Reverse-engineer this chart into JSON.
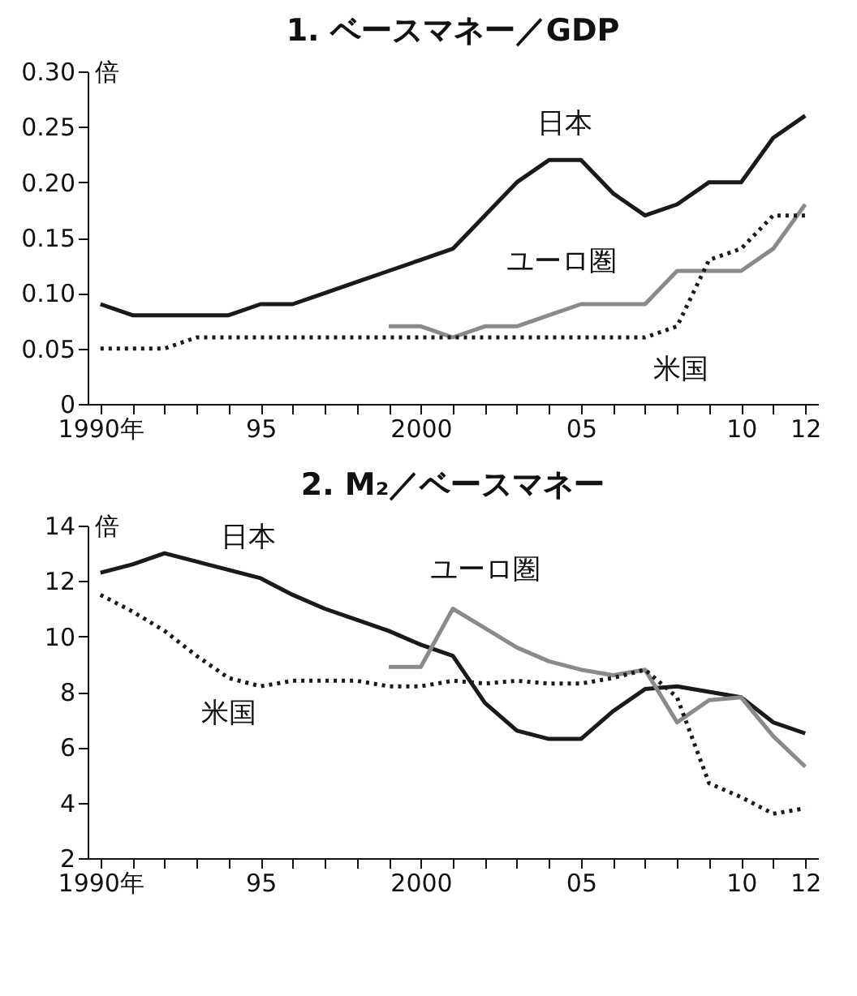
{
  "chart_data": [
    {
      "type": "line",
      "title": "1. ベースマネー／GDP",
      "ylabel": "倍",
      "x": [
        1990,
        1991,
        1992,
        1993,
        1994,
        1995,
        1996,
        1997,
        1998,
        1999,
        2000,
        2001,
        2002,
        2003,
        2004,
        2005,
        2006,
        2007,
        2008,
        2009,
        2010,
        2011,
        2012
      ],
      "series": [
        {
          "name": "日本",
          "color": "#1a1a1a",
          "line_style": "solid",
          "values": [
            0.09,
            0.08,
            0.08,
            0.08,
            0.08,
            0.09,
            0.09,
            0.1,
            0.11,
            0.12,
            0.13,
            0.14,
            0.17,
            0.2,
            0.22,
            0.22,
            0.19,
            0.17,
            0.18,
            0.2,
            0.2,
            0.24,
            0.26
          ]
        },
        {
          "name": "ユーロ圏",
          "color": "#8a8a8a",
          "line_style": "solid",
          "x": [
            1999,
            2000,
            2001,
            2002,
            2003,
            2004,
            2005,
            2006,
            2007,
            2008,
            2009,
            2010,
            2011,
            2012
          ],
          "values": [
            0.07,
            0.07,
            0.06,
            0.07,
            0.07,
            0.08,
            0.09,
            0.09,
            0.09,
            0.12,
            0.12,
            0.12,
            0.14,
            0.18
          ]
        },
        {
          "name": "米国",
          "color": "#1a1a1a",
          "line_style": "dotted",
          "values": [
            0.05,
            0.05,
            0.05,
            0.06,
            0.06,
            0.06,
            0.06,
            0.06,
            0.06,
            0.06,
            0.06,
            0.06,
            0.06,
            0.06,
            0.06,
            0.06,
            0.06,
            0.06,
            0.07,
            0.13,
            0.14,
            0.17,
            0.17
          ]
        }
      ],
      "xlim": [
        1989.6,
        2012.4
      ],
      "xticks": [
        {
          "value": 1990,
          "label": "1990年"
        },
        {
          "value": 1991,
          "label": null
        },
        {
          "value": 1992,
          "label": null
        },
        {
          "value": 1993,
          "label": null
        },
        {
          "value": 1994,
          "label": null
        },
        {
          "value": 1995,
          "label": "95"
        },
        {
          "value": 1996,
          "label": null
        },
        {
          "value": 1997,
          "label": null
        },
        {
          "value": 1998,
          "label": null
        },
        {
          "value": 1999,
          "label": null
        },
        {
          "value": 2000,
          "label": "2000"
        },
        {
          "value": 2001,
          "label": null
        },
        {
          "value": 2002,
          "label": null
        },
        {
          "value": 2003,
          "label": null
        },
        {
          "value": 2004,
          "label": null
        },
        {
          "value": 2005,
          "label": "05"
        },
        {
          "value": 2006,
          "label": null
        },
        {
          "value": 2007,
          "label": null
        },
        {
          "value": 2008,
          "label": null
        },
        {
          "value": 2009,
          "label": null
        },
        {
          "value": 2010,
          "label": "10"
        },
        {
          "value": 2011,
          "label": null
        },
        {
          "value": 2012,
          "label": "12"
        }
      ],
      "ylim": [
        0,
        0.3
      ],
      "yticks": [
        0,
        0.05,
        {
          "value": 0.1,
          "label": "0.10"
        },
        0.15,
        {
          "value": 0.2,
          "label": "0.20"
        },
        0.25,
        {
          "value": 0.3,
          "label": "0.30"
        }
      ],
      "grid": false,
      "legend": false
    },
    {
      "type": "line",
      "title": "2. M₂／ベースマネー",
      "ylabel": "倍",
      "x": [
        1990,
        1991,
        1992,
        1993,
        1994,
        1995,
        1996,
        1997,
        1998,
        1999,
        2000,
        2001,
        2002,
        2003,
        2004,
        2005,
        2006,
        2007,
        2008,
        2009,
        2010,
        2011,
        2012
      ],
      "series": [
        {
          "name": "日本",
          "color": "#1a1a1a",
          "line_style": "solid",
          "values": [
            12.3,
            12.6,
            13.0,
            12.7,
            12.4,
            12.1,
            11.5,
            11.0,
            10.6,
            10.2,
            9.7,
            9.3,
            7.6,
            6.6,
            6.3,
            6.3,
            7.3,
            8.1,
            8.2,
            8.0,
            7.8,
            6.9,
            6.5
          ]
        },
        {
          "name": "ユーロ圏",
          "color": "#8a8a8a",
          "line_style": "solid",
          "x": [
            1999,
            2000,
            2001,
            2002,
            2003,
            2004,
            2005,
            2006,
            2007,
            2008,
            2009,
            2010,
            2011,
            2012
          ],
          "values": [
            8.9,
            8.9,
            11.0,
            10.3,
            9.6,
            9.1,
            8.8,
            8.6,
            8.8,
            6.9,
            7.7,
            7.8,
            6.4,
            5.3
          ]
        },
        {
          "name": "米国",
          "color": "#1a1a1a",
          "line_style": "dotted",
          "values": [
            11.5,
            10.9,
            10.2,
            9.3,
            8.5,
            8.2,
            8.4,
            8.4,
            8.4,
            8.2,
            8.2,
            8.4,
            8.3,
            8.4,
            8.3,
            8.3,
            8.5,
            8.8,
            7.8,
            4.7,
            4.2,
            3.6,
            3.8
          ]
        }
      ],
      "xlim": [
        1989.6,
        2012.4
      ],
      "xticks": [
        {
          "value": 1990,
          "label": "1990年"
        },
        {
          "value": 1991,
          "label": null
        },
        {
          "value": 1992,
          "label": null
        },
        {
          "value": 1993,
          "label": null
        },
        {
          "value": 1994,
          "label": null
        },
        {
          "value": 1995,
          "label": "95"
        },
        {
          "value": 1996,
          "label": null
        },
        {
          "value": 1997,
          "label": null
        },
        {
          "value": 1998,
          "label": null
        },
        {
          "value": 1999,
          "label": null
        },
        {
          "value": 2000,
          "label": "2000"
        },
        {
          "value": 2001,
          "label": null
        },
        {
          "value": 2002,
          "label": null
        },
        {
          "value": 2003,
          "label": null
        },
        {
          "value": 2004,
          "label": null
        },
        {
          "value": 2005,
          "label": "05"
        },
        {
          "value": 2006,
          "label": null
        },
        {
          "value": 2007,
          "label": null
        },
        {
          "value": 2008,
          "label": null
        },
        {
          "value": 2009,
          "label": null
        },
        {
          "value": 2010,
          "label": "10"
        },
        {
          "value": 2011,
          "label": null
        },
        {
          "value": 2012,
          "label": "12"
        }
      ],
      "ylim": [
        2,
        14
      ],
      "yticks": [
        2,
        4,
        6,
        8,
        10,
        12,
        14
      ],
      "grid": false,
      "legend": false
    }
  ]
}
